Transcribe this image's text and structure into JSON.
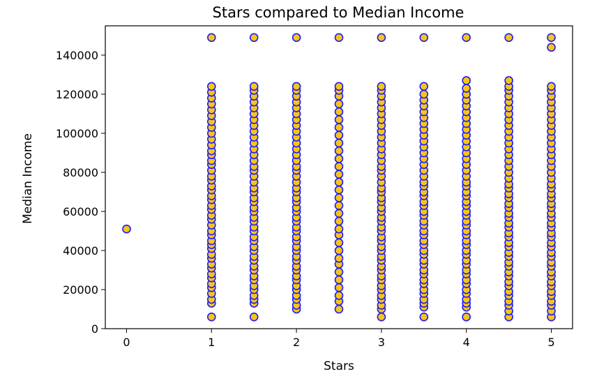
{
  "chart_data": {
    "type": "scatter",
    "title": "Stars compared to Median Income",
    "xlabel": "Stars",
    "ylabel": "Median Income",
    "xlim": [
      -0.25,
      5.25
    ],
    "ylim": [
      0,
      155000
    ],
    "x_ticks": [
      "0",
      "1",
      "2",
      "3",
      "4",
      "5"
    ],
    "y_ticks": [
      "0",
      "20000",
      "40000",
      "60000",
      "80000",
      "100000",
      "120000",
      "140000"
    ],
    "grid": false,
    "marker_fill": "#f5c518",
    "marker_edge": "#1a1aff",
    "columns": [
      {
        "x": 0,
        "values": [
          51000
        ]
      },
      {
        "x": 1,
        "values": [
          6000,
          13000,
          15000,
          18000,
          21000,
          23000,
          26000,
          28000,
          31000,
          33000,
          36000,
          38000,
          41000,
          43000,
          45000,
          48000,
          50000,
          53000,
          56000,
          58000,
          61000,
          63000,
          66000,
          68000,
          71000,
          73000,
          76000,
          78000,
          81000,
          84000,
          86000,
          89000,
          91000,
          94000,
          97000,
          100000,
          103000,
          106000,
          109000,
          112000,
          115000,
          118000,
          121000,
          124000,
          149000
        ]
      },
      {
        "x": 1.5,
        "values": [
          6000,
          13000,
          15000,
          17000,
          20000,
          22000,
          25000,
          27000,
          30000,
          32000,
          35000,
          37000,
          40000,
          42000,
          45000,
          47000,
          50000,
          52000,
          55000,
          57000,
          60000,
          62000,
          65000,
          67000,
          70000,
          72000,
          75000,
          78000,
          81000,
          83000,
          86000,
          89000,
          92000,
          95000,
          98000,
          101000,
          104000,
          107000,
          110000,
          113000,
          116000,
          119000,
          122000,
          124000,
          149000
        ]
      },
      {
        "x": 2,
        "values": [
          10000,
          12000,
          15000,
          17000,
          20000,
          22000,
          25000,
          27000,
          30000,
          32000,
          35000,
          37000,
          40000,
          42000,
          45000,
          47000,
          50000,
          52000,
          55000,
          57000,
          60000,
          62000,
          65000,
          67000,
          70000,
          72000,
          75000,
          78000,
          81000,
          83000,
          86000,
          89000,
          92000,
          95000,
          98000,
          101000,
          104000,
          107000,
          110000,
          113000,
          116000,
          119000,
          122000,
          124000,
          149000
        ]
      },
      {
        "x": 2.5,
        "values": [
          10000,
          14000,
          17000,
          21000,
          25000,
          29000,
          33000,
          36000,
          40000,
          44000,
          48000,
          51000,
          55000,
          59000,
          63000,
          67000,
          71000,
          75000,
          79000,
          83000,
          87000,
          91000,
          95000,
          99000,
          103000,
          107000,
          111000,
          115000,
          119000,
          122000,
          124000,
          149000
        ]
      },
      {
        "x": 3,
        "values": [
          6000,
          10000,
          12000,
          15000,
          17000,
          20000,
          22000,
          25000,
          27000,
          30000,
          32000,
          35000,
          37000,
          40000,
          42000,
          45000,
          47000,
          50000,
          52000,
          55000,
          57000,
          60000,
          62000,
          65000,
          67000,
          70000,
          72000,
          75000,
          78000,
          81000,
          83000,
          86000,
          89000,
          92000,
          95000,
          98000,
          101000,
          104000,
          107000,
          110000,
          113000,
          116000,
          119000,
          122000,
          124000,
          149000
        ]
      },
      {
        "x": 3.5,
        "values": [
          6000,
          11000,
          13000,
          15000,
          18000,
          20000,
          23000,
          25000,
          28000,
          30000,
          33000,
          35000,
          38000,
          40000,
          43000,
          45000,
          48000,
          50000,
          53000,
          55000,
          58000,
          60000,
          63000,
          65000,
          68000,
          70000,
          73000,
          75000,
          78000,
          81000,
          84000,
          87000,
          90000,
          93000,
          96000,
          99000,
          102000,
          105000,
          108000,
          111000,
          114000,
          117000,
          120000,
          124000,
          149000
        ]
      },
      {
        "x": 4,
        "values": [
          6000,
          11000,
          13000,
          15000,
          18000,
          20000,
          23000,
          25000,
          28000,
          30000,
          33000,
          35000,
          38000,
          40000,
          43000,
          45000,
          48000,
          50000,
          53000,
          55000,
          58000,
          60000,
          63000,
          65000,
          68000,
          70000,
          73000,
          75000,
          78000,
          81000,
          84000,
          87000,
          90000,
          93000,
          96000,
          99000,
          102000,
          105000,
          108000,
          111000,
          114000,
          117000,
          120000,
          123000,
          127000,
          149000
        ]
      },
      {
        "x": 4.5,
        "values": [
          6000,
          9000,
          12000,
          14000,
          17000,
          19000,
          22000,
          24000,
          27000,
          29000,
          32000,
          34000,
          37000,
          39000,
          42000,
          44000,
          47000,
          49000,
          52000,
          54000,
          57000,
          59000,
          62000,
          64000,
          67000,
          69000,
          72000,
          74000,
          77000,
          80000,
          83000,
          86000,
          89000,
          92000,
          95000,
          98000,
          101000,
          104000,
          107000,
          110000,
          113000,
          116000,
          119000,
          122000,
          124000,
          127000,
          149000
        ]
      },
      {
        "x": 5,
        "values": [
          6000,
          9000,
          12000,
          14000,
          17000,
          19000,
          22000,
          24000,
          27000,
          29000,
          32000,
          34000,
          37000,
          39000,
          42000,
          44000,
          47000,
          49000,
          52000,
          54000,
          57000,
          59000,
          62000,
          64000,
          67000,
          69000,
          72000,
          74000,
          77000,
          80000,
          83000,
          86000,
          89000,
          92000,
          95000,
          98000,
          101000,
          104000,
          107000,
          110000,
          113000,
          116000,
          119000,
          122000,
          124000,
          144000,
          149000
        ]
      }
    ]
  }
}
